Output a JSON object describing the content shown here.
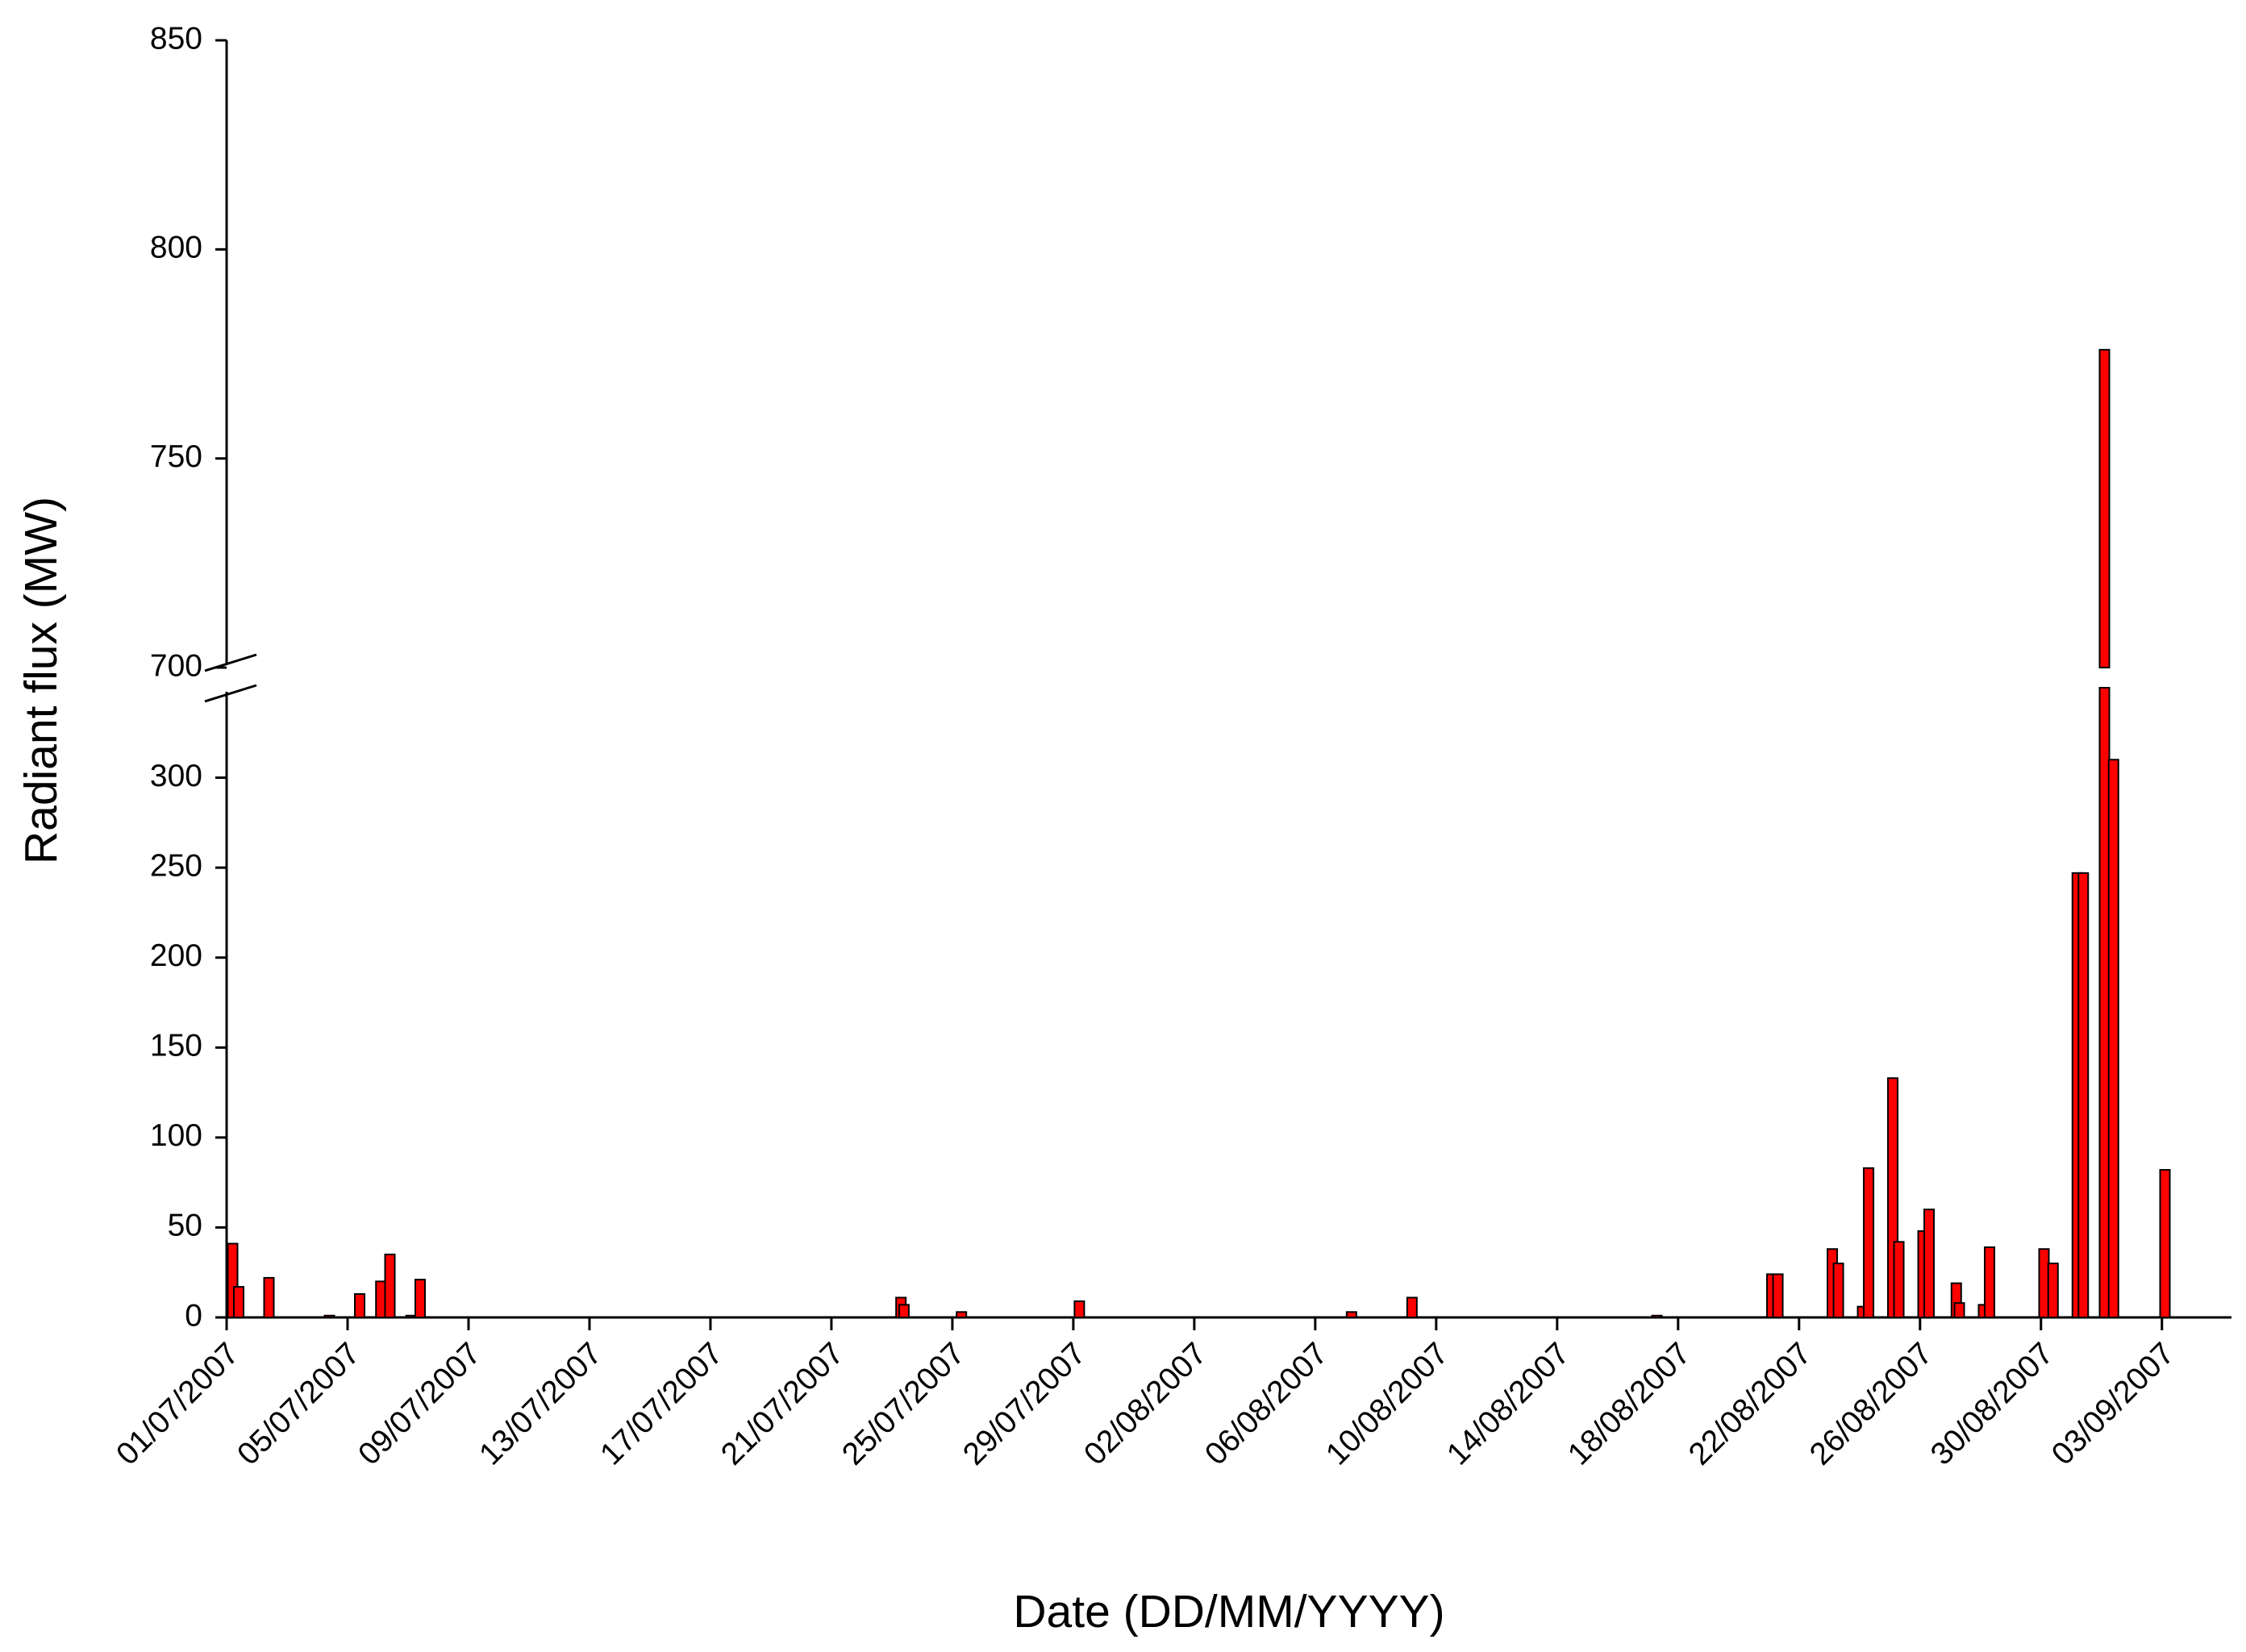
{
  "chart_data": {
    "type": "bar",
    "x_label": "Date (DD/MM/YYYY)",
    "y_label": "Radiant flux (MW)",
    "x": [
      0.2,
      0.4,
      1.4,
      3.4,
      4.4,
      5.1,
      5.4,
      6.1,
      6.4,
      22.3,
      22.4,
      24.3,
      28.2,
      37.2,
      39.2,
      47.3,
      51.1,
      51.3,
      53.1,
      53.3,
      54.1,
      54.3,
      55.1,
      55.3,
      56.1,
      56.3,
      57.2,
      57.3,
      58.1,
      58.3,
      60.1,
      60.4,
      61.2,
      61.4,
      62.1,
      62.4,
      64.1
    ],
    "values": [
      41,
      17,
      22,
      1,
      13,
      20,
      35,
      1,
      21,
      11,
      7,
      3,
      9,
      3,
      11,
      1,
      24,
      24,
      38,
      30,
      6,
      83,
      133,
      42,
      48,
      60,
      19,
      8,
      7,
      39,
      38,
      30,
      247,
      247,
      776,
      310,
      82
    ],
    "color": "#ff0000",
    "xlim": [
      0,
      66.3
    ],
    "xticks": [
      {
        "value": 0,
        "label": "01/07/2007"
      },
      {
        "value": 4,
        "label": "05/07/2007"
      },
      {
        "value": 8,
        "label": "09/07/2007"
      },
      {
        "value": 12,
        "label": "13/07/2007"
      },
      {
        "value": 16,
        "label": "17/07/2007"
      },
      {
        "value": 20,
        "label": "21/07/2007"
      },
      {
        "value": 24,
        "label": "25/07/2007"
      },
      {
        "value": 28,
        "label": "29/07/2007"
      },
      {
        "value": 32,
        "label": "02/08/2007"
      },
      {
        "value": 36,
        "label": "06/08/2007"
      },
      {
        "value": 40,
        "label": "10/08/2007"
      },
      {
        "value": 44,
        "label": "14/08/2007"
      },
      {
        "value": 48,
        "label": "18/08/2007"
      },
      {
        "value": 52,
        "label": "22/08/2007"
      },
      {
        "value": 56,
        "label": "26/08/2007"
      },
      {
        "value": 60,
        "label": "30/08/2007"
      },
      {
        "value": 64,
        "label": "03/09/2007"
      }
    ],
    "ylim": [
      0,
      850
    ],
    "axis_break": [
      350,
      700
    ],
    "yticks": [
      0,
      50,
      100,
      150,
      200,
      250,
      300,
      700,
      750,
      800,
      850
    ]
  }
}
